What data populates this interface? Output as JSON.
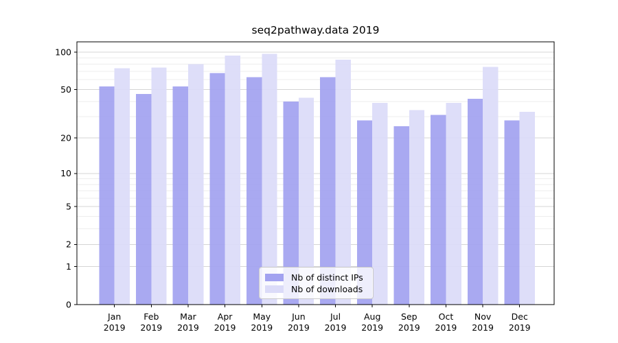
{
  "figure": {
    "title": "seq2pathway.data 2019"
  },
  "chart_data": {
    "type": "bar",
    "title": "seq2pathway.data 2019",
    "categories": [
      "Jan",
      "Feb",
      "Mar",
      "Apr",
      "May",
      "Jun",
      "Jul",
      "Aug",
      "Sep",
      "Oct",
      "Nov",
      "Dec"
    ],
    "category_year": "2019",
    "series": [
      {
        "name": "Nb of distinct IPs",
        "color": "#a2a2f0",
        "values": [
          53,
          46,
          53,
          68,
          63,
          40,
          63,
          28,
          25,
          31,
          42,
          28
        ]
      },
      {
        "name": "Nb of downloads",
        "color": "#dbdbf8",
        "values": [
          74,
          75,
          80,
          94,
          97,
          43,
          87,
          39,
          34,
          39,
          76,
          33
        ]
      }
    ],
    "xlabel": "",
    "ylabel": "",
    "yaxis": {
      "scale": "log1p",
      "tick_values": [
        100,
        50,
        20,
        10,
        5,
        2,
        1,
        0
      ],
      "tick_labels": [
        "100",
        "50",
        "20",
        "10",
        "5",
        "2",
        "1",
        "0"
      ],
      "minor_gridlines": [
        90,
        80,
        70,
        60,
        40,
        30,
        9,
        8,
        7,
        6,
        4,
        3
      ],
      "ylim": [
        0,
        120
      ]
    },
    "grid": true,
    "legend_position": "lower center",
    "colors": {
      "major_grid": "#d4d4d4",
      "minor_grid": "#ededed",
      "axis": "#000000",
      "text": "#000000",
      "background": "#ffffff"
    }
  }
}
